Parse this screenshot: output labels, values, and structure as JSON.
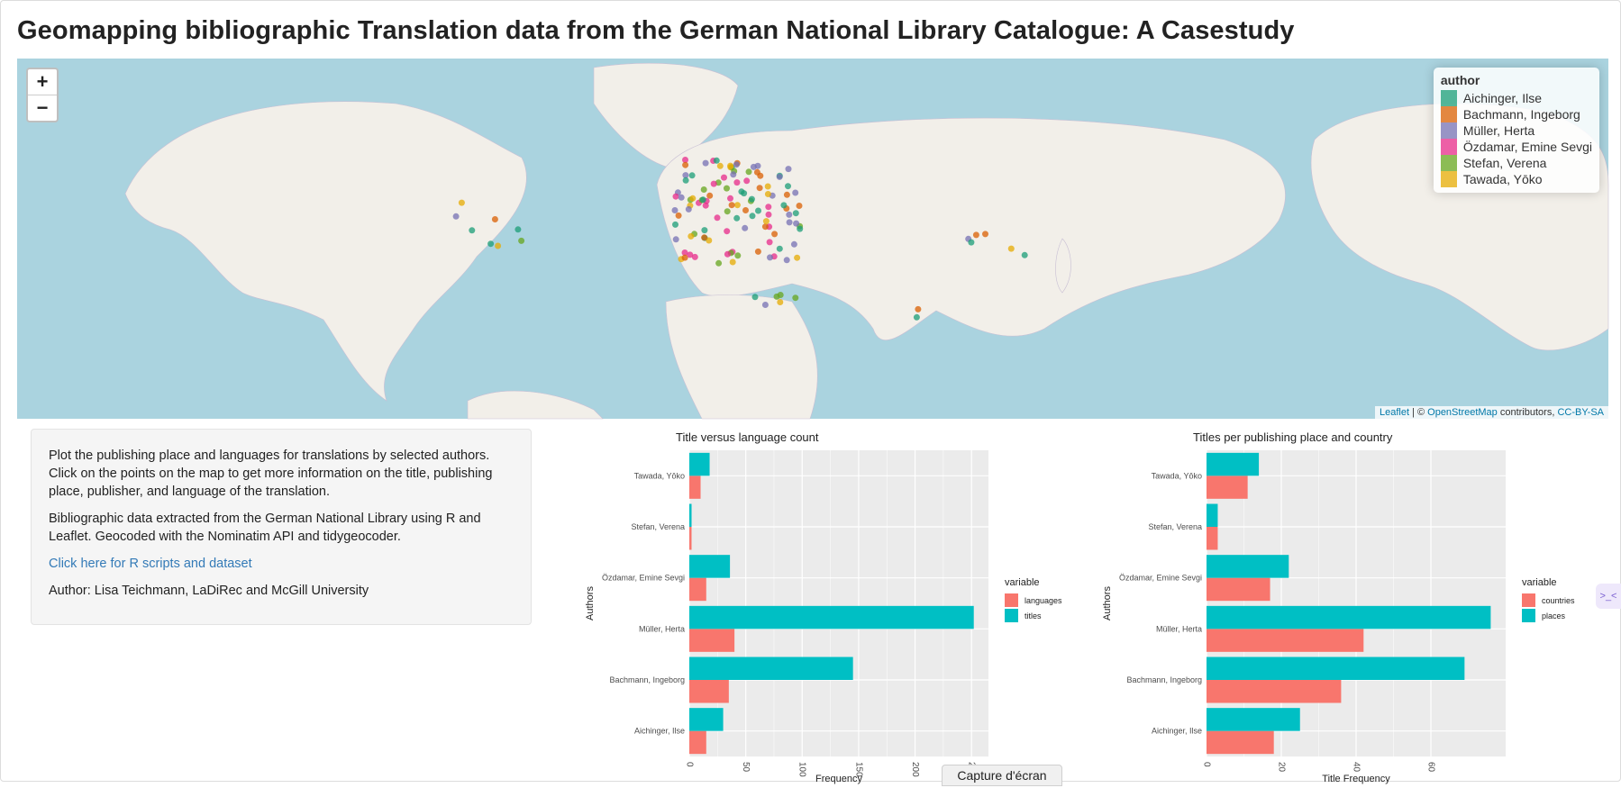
{
  "page": {
    "title": "Geomapping bibliographic Translation data from the German National Library Catalogue: A Casestudy"
  },
  "map": {
    "zoom_in": "+",
    "zoom_out": "−",
    "legend_title": "author",
    "legend": [
      {
        "label": "Aichinger, Ilse",
        "color": "#1b9e77"
      },
      {
        "label": "Bachmann, Ingeborg",
        "color": "#d95f02"
      },
      {
        "label": "Müller, Herta",
        "color": "#7570b3"
      },
      {
        "label": "Özdamar, Emine Sevgi",
        "color": "#e7298a"
      },
      {
        "label": "Stefan, Verena",
        "color": "#66a61e"
      },
      {
        "label": "Tawada, Yōko",
        "color": "#e6ab02"
      }
    ],
    "attribution": {
      "leaflet": "Leaflet",
      "sep": " | © ",
      "osm": "OpenStreetMap",
      "contrib": " contributors, ",
      "license": "CC-BY-SA"
    }
  },
  "sidebar": {
    "p1": "Plot the publishing place and languages for translations by selected authors. Click on the points on the map to get more information on the title, publishing place, publisher, and language of the translation.",
    "p2": "Bibliographic data extracted from the German National Library using R and Leaflet. Geocoded with the Nominatim API and tidygeocoder.",
    "link": "Click here for R scripts and dataset",
    "author": "Author: Lisa Teichmann, LaDiRec and McGill University"
  },
  "chart_data": [
    {
      "type": "bar",
      "orientation": "horizontal",
      "title": "Title versus language count",
      "xlabel": "Frequency",
      "ylabel": "Authors",
      "categories": [
        "Aichinger, Ilse",
        "Bachmann, Ingeborg",
        "Müller, Herta",
        "Özdamar, Emine Sevgi",
        "Stefan, Verena",
        "Tawada, Yōko"
      ],
      "series": [
        {
          "name": "languages",
          "color": "#f8766d",
          "values": [
            15,
            35,
            40,
            15,
            2,
            10
          ]
        },
        {
          "name": "titles",
          "color": "#00bfc4",
          "values": [
            30,
            145,
            252,
            36,
            2,
            18
          ]
        }
      ],
      "xlim": [
        0,
        265
      ],
      "xticks": [
        0,
        50,
        100,
        150,
        200,
        250
      ],
      "legend_title": "variable"
    },
    {
      "type": "bar",
      "orientation": "horizontal",
      "title": "Titles per publishing place and country",
      "xlabel": "Title Frequency",
      "ylabel": "Authors",
      "categories": [
        "Aichinger, Ilse",
        "Bachmann, Ingeborg",
        "Müller, Herta",
        "Özdamar, Emine Sevgi",
        "Stefan, Verena",
        "Tawada, Yōko"
      ],
      "series": [
        {
          "name": "countries",
          "color": "#f8766d",
          "values": [
            18,
            36,
            42,
            17,
            3,
            11
          ]
        },
        {
          "name": "places",
          "color": "#00bfc4",
          "values": [
            25,
            69,
            76,
            22,
            3,
            14
          ]
        }
      ],
      "xlim": [
        0,
        80
      ],
      "xticks": [
        0,
        20,
        40,
        60
      ],
      "legend_title": "variable"
    }
  ],
  "overlay": {
    "capture": "Capture d'écran",
    "side_icon": ">_<"
  }
}
